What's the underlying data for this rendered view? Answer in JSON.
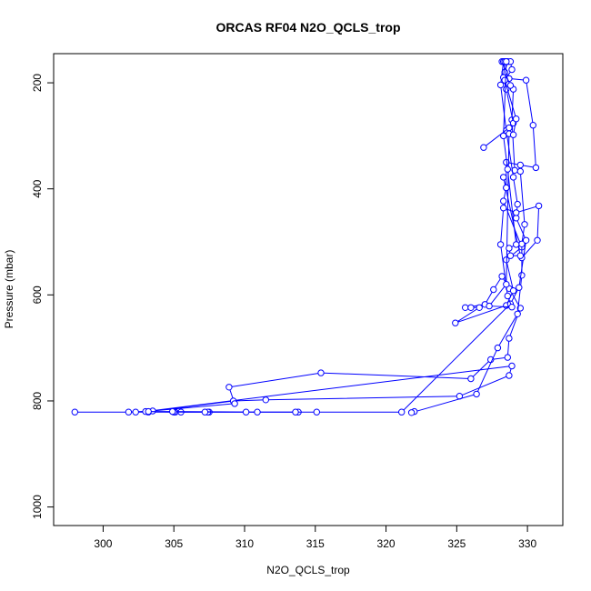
{
  "chart_data": {
    "type": "line",
    "title": "ORCAS RF04 N2O_QCLS_trop",
    "xlabel": "N2O_QCLS_trop",
    "ylabel": "Pressure (mbar)",
    "xlim": [
      296.5,
      332.5
    ],
    "ylim": [
      1035,
      145
    ],
    "y_reversed": true,
    "grid": false,
    "legend": "none",
    "x_ticks": [
      "300",
      "305",
      "310",
      "315",
      "320",
      "325",
      "330"
    ],
    "y_ticks": [
      "200",
      "400",
      "600",
      "800",
      "1000"
    ],
    "series": [
      {
        "color": "#0000ff",
        "marker": "open-circle",
        "points": [
          [
            298.0,
            821
          ],
          [
            303.2,
            821
          ],
          [
            305.5,
            821
          ],
          [
            307.5,
            821
          ],
          [
            313.8,
            821
          ],
          [
            307.4,
            821
          ],
          [
            305.1,
            821
          ],
          [
            302.3,
            821
          ],
          [
            301.8,
            821
          ],
          [
            303.5,
            819
          ],
          [
            309.2,
            800
          ],
          [
            311.5,
            798
          ],
          [
            325.2,
            791
          ],
          [
            328.7,
            752
          ],
          [
            328.9,
            734
          ],
          [
            303.0,
            820
          ],
          [
            309.3,
            805
          ],
          [
            308.9,
            774
          ],
          [
            315.4,
            747
          ],
          [
            326.0,
            758
          ],
          [
            327.4,
            722
          ],
          [
            328.6,
            718
          ],
          [
            328.7,
            682
          ],
          [
            329.5,
            625
          ],
          [
            328.7,
            588
          ],
          [
            328.2,
            565
          ],
          [
            327.6,
            590
          ],
          [
            327.0,
            618
          ],
          [
            325.6,
            624
          ],
          [
            326.0,
            624
          ],
          [
            326.6,
            624
          ],
          [
            324.9,
            653
          ],
          [
            328.5,
            620
          ],
          [
            329.0,
            592
          ],
          [
            328.5,
            534
          ],
          [
            329.6,
            510
          ],
          [
            328.3,
            423
          ],
          [
            328.5,
            398
          ],
          [
            328.5,
            350
          ],
          [
            329.5,
            355
          ],
          [
            330.6,
            360
          ],
          [
            330.4,
            280
          ],
          [
            329.9,
            195
          ],
          [
            328.7,
            192
          ],
          [
            328.2,
            160
          ]
        ]
      },
      {
        "color": "#0000ff",
        "marker": "open-circle",
        "points": [
          [
            322.0,
            820
          ],
          [
            321.8,
            822
          ],
          [
            326.4,
            787
          ],
          [
            327.9,
            700
          ],
          [
            329.3,
            636
          ],
          [
            329.6,
            563
          ],
          [
            329.6,
            504
          ],
          [
            329.8,
            467
          ],
          [
            329.5,
            367
          ],
          [
            329.1,
            365
          ],
          [
            328.9,
            270
          ],
          [
            329.0,
            212
          ],
          [
            328.8,
            205
          ],
          [
            328.4,
            180
          ],
          [
            328.6,
            160
          ]
        ]
      },
      {
        "color": "#0000ff",
        "marker": "open-circle",
        "points": [
          [
            315.1,
            821
          ],
          [
            313.6,
            821
          ],
          [
            310.1,
            821
          ],
          [
            307.2,
            821
          ],
          [
            305.0,
            821
          ],
          [
            303.2,
            820
          ],
          [
            304.9,
            820
          ],
          [
            310.9,
            821
          ],
          [
            321.1,
            821
          ],
          [
            328.8,
            617
          ],
          [
            329.4,
            586
          ],
          [
            329.9,
            497
          ],
          [
            329.2,
            455
          ],
          [
            329.3,
            429
          ],
          [
            329.0,
            378
          ],
          [
            328.5,
            290
          ],
          [
            328.1,
            204
          ],
          [
            328.3,
            160
          ]
        ]
      },
      {
        "color": "#0000ff",
        "marker": "open-circle",
        "points": [
          [
            326.9,
            322
          ],
          [
            328.7,
            285
          ],
          [
            329.0,
            276
          ],
          [
            328.5,
            212
          ],
          [
            328.3,
            190
          ],
          [
            328.4,
            160
          ]
        ]
      },
      {
        "color": "#0000ff",
        "marker": "open-circle",
        "points": [
          [
            329.6,
            530
          ],
          [
            330.7,
            497
          ],
          [
            330.8,
            432
          ],
          [
            329.2,
            445
          ],
          [
            328.3,
            436
          ],
          [
            328.1,
            505
          ],
          [
            328.6,
            602
          ],
          [
            328.9,
            623
          ],
          [
            327.3,
            621
          ],
          [
            328.5,
            580
          ],
          [
            328.7,
            296
          ],
          [
            329.0,
            298
          ],
          [
            329.2,
            268
          ],
          [
            328.4,
            195
          ],
          [
            328.9,
            175
          ],
          [
            328.8,
            160
          ]
        ]
      },
      {
        "color": "#0000ff",
        "marker": "open-circle",
        "points": [
          [
            328.5,
            398
          ],
          [
            328.3,
            378
          ],
          [
            329.5,
            526
          ],
          [
            328.8,
            526
          ],
          [
            328.7,
            512
          ],
          [
            329.2,
            505
          ],
          [
            328.6,
            363
          ],
          [
            328.3,
            300
          ],
          [
            328.5,
            160
          ]
        ]
      }
    ]
  }
}
